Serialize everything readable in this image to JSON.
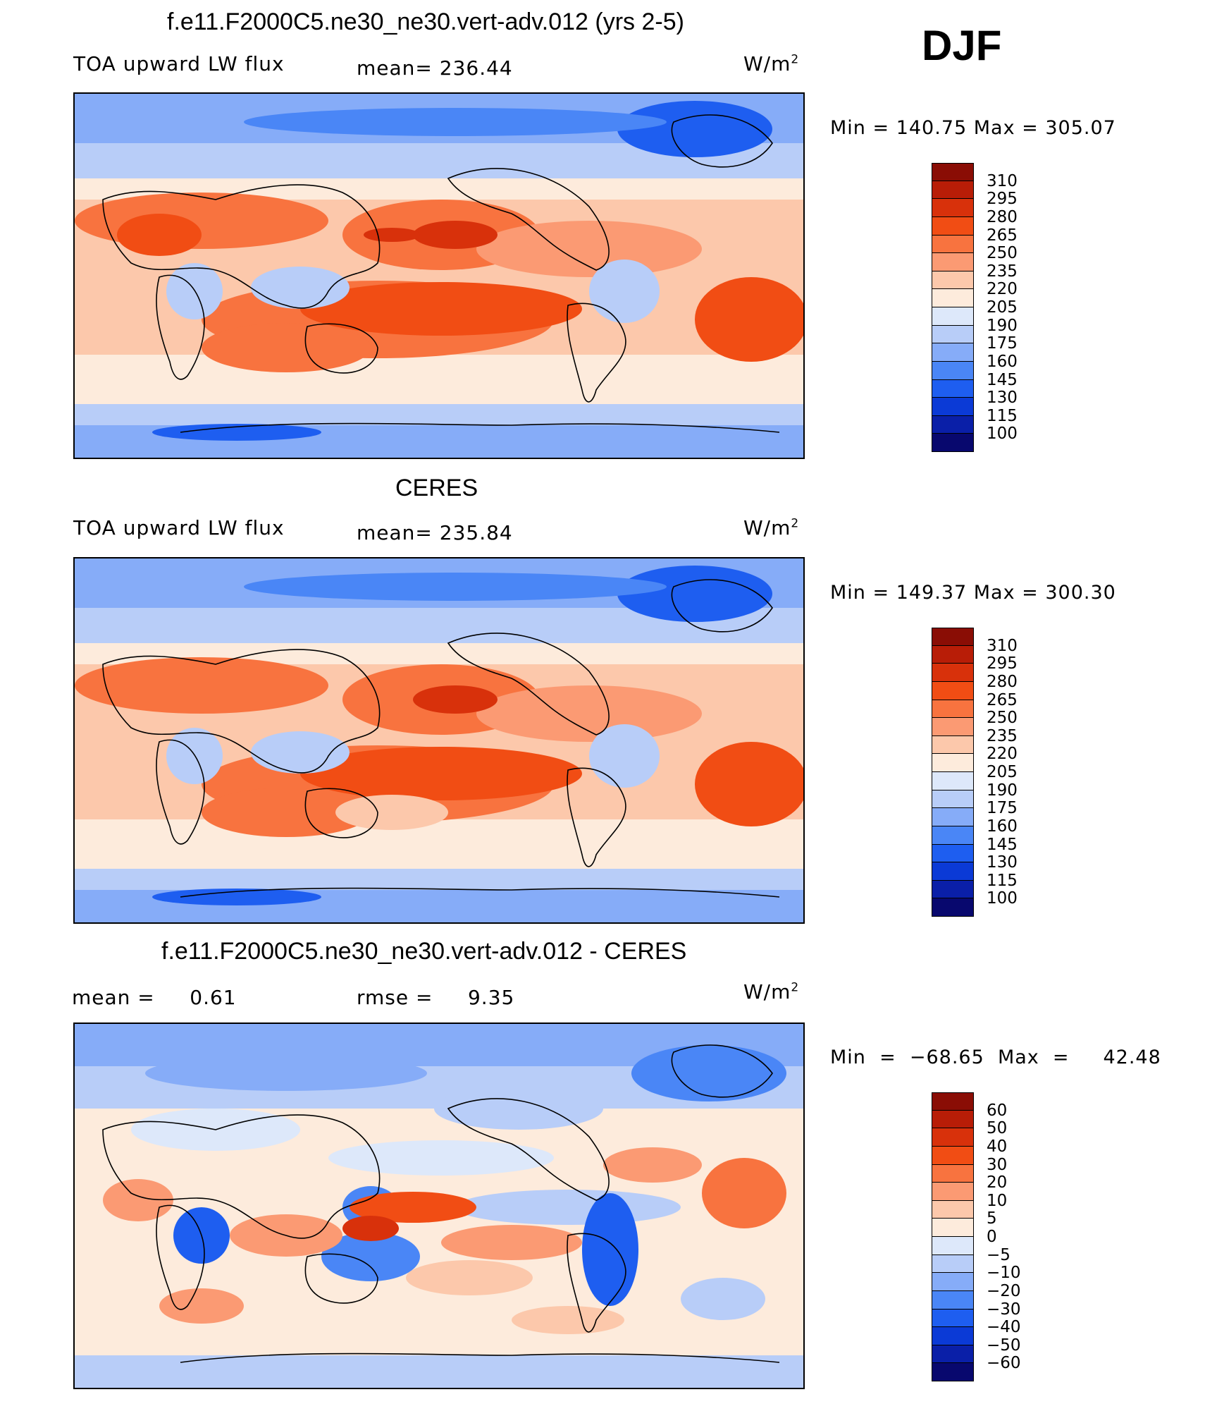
{
  "season": "DJF",
  "units_main": "W/m",
  "units_sup": "2",
  "colors_main": [
    "#08086e",
    "#0a1fa8",
    "#0b3ad6",
    "#1e5ef0",
    "#4a86f6",
    "#86acf8",
    "#b8cdf8",
    "#dde8fa",
    "#fdebdc",
    "#fcc8ab",
    "#fb9a73",
    "#f8733f",
    "#f14d14",
    "#d8310b",
    "#b81d07",
    "#8a0d05"
  ],
  "colors_diff": [
    "#08086e",
    "#0a1fa8",
    "#0b3ad6",
    "#1e5ef0",
    "#4a86f6",
    "#86acf8",
    "#b8cdf8",
    "#dde8fa",
    "#fdebdc",
    "#fcc8ab",
    "#fb9a73",
    "#f8733f",
    "#f14d14",
    "#d8310b",
    "#b81d07",
    "#8a0d05"
  ],
  "chart_data": [
    {
      "type": "heatmap",
      "title": "f.e11.F2000C5.ne30_ne30.vert-adv.012 (yrs 2-5)",
      "left_label": "TOA upward LW flux",
      "center_label": "mean= 236.44",
      "minmax": "Min  =  140.75  Max  =  305.07",
      "levels": [
        "310",
        "295",
        "280",
        "265",
        "250",
        "235",
        "220",
        "205",
        "190",
        "175",
        "160",
        "145",
        "130",
        "115",
        "100"
      ],
      "mean": 236.44,
      "min": 140.75,
      "max": 305.07
    },
    {
      "type": "heatmap",
      "title": "CERES",
      "left_label": "TOA upward LW flux",
      "center_label": "mean= 235.84",
      "minmax": "Min  =  149.37  Max  =  300.30",
      "levels": [
        "310",
        "295",
        "280",
        "265",
        "250",
        "235",
        "220",
        "205",
        "190",
        "175",
        "160",
        "145",
        "130",
        "115",
        "100"
      ],
      "mean": 235.84,
      "min": 149.37,
      "max": 300.3
    },
    {
      "type": "heatmap",
      "title": "f.e11.F2000C5.ne30_ne30.vert-adv.012 - CERES",
      "left_label": "mean =     0.61",
      "center_label": "rmse =     9.35",
      "minmax": "Min  =  −68.65  Max  =     42.48",
      "levels": [
        "60",
        "50",
        "40",
        "30",
        "20",
        "10",
        "5",
        "0",
        "−5",
        "−10",
        "−20",
        "−30",
        "−40",
        "−50",
        "−60"
      ],
      "mean": 0.61,
      "rmse": 9.35,
      "min": -68.65,
      "max": 42.48
    }
  ]
}
